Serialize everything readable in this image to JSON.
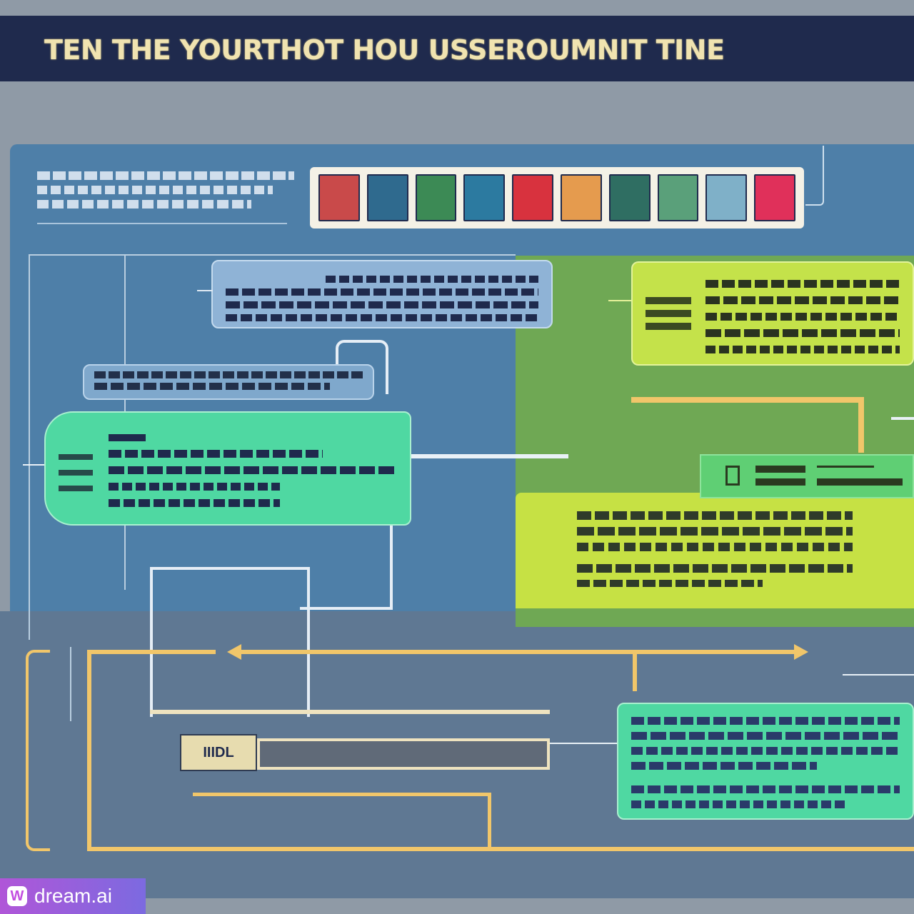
{
  "header": {
    "title": "TEN THE YOURTHOT HOU USSEROUMNIT TINE"
  },
  "intro": {
    "lines": []
  },
  "thumbnails": [
    {
      "color": "#c94a4a"
    },
    {
      "color": "#2f6a8e"
    },
    {
      "color": "#3c8a55"
    },
    {
      "color": "#2c7aa0"
    },
    {
      "color": "#d8323e"
    },
    {
      "color": "#e59b4e"
    },
    {
      "color": "#2f6e62"
    },
    {
      "color": "#5aa07a"
    },
    {
      "color": "#7fb0c8"
    },
    {
      "color": "#e0305a"
    }
  ],
  "cards": {
    "top_blue": {
      "text": ""
    },
    "top_lime": {
      "text": ""
    },
    "mid_grey": {
      "text": ""
    },
    "mid_green": {
      "text": ""
    },
    "lower_lime": {
      "text": ""
    },
    "bottom_green": {
      "text": ""
    }
  },
  "nav_label": "IIIDL",
  "watermark": {
    "logo": "W",
    "text": "dream.ai"
  },
  "colors": {
    "header_bg": "#1f2a4d",
    "board_bg": "#4e7fa8",
    "green_card": "#4fd8a2",
    "lime_card": "#c4e24a",
    "connector": "#f1c66a"
  }
}
